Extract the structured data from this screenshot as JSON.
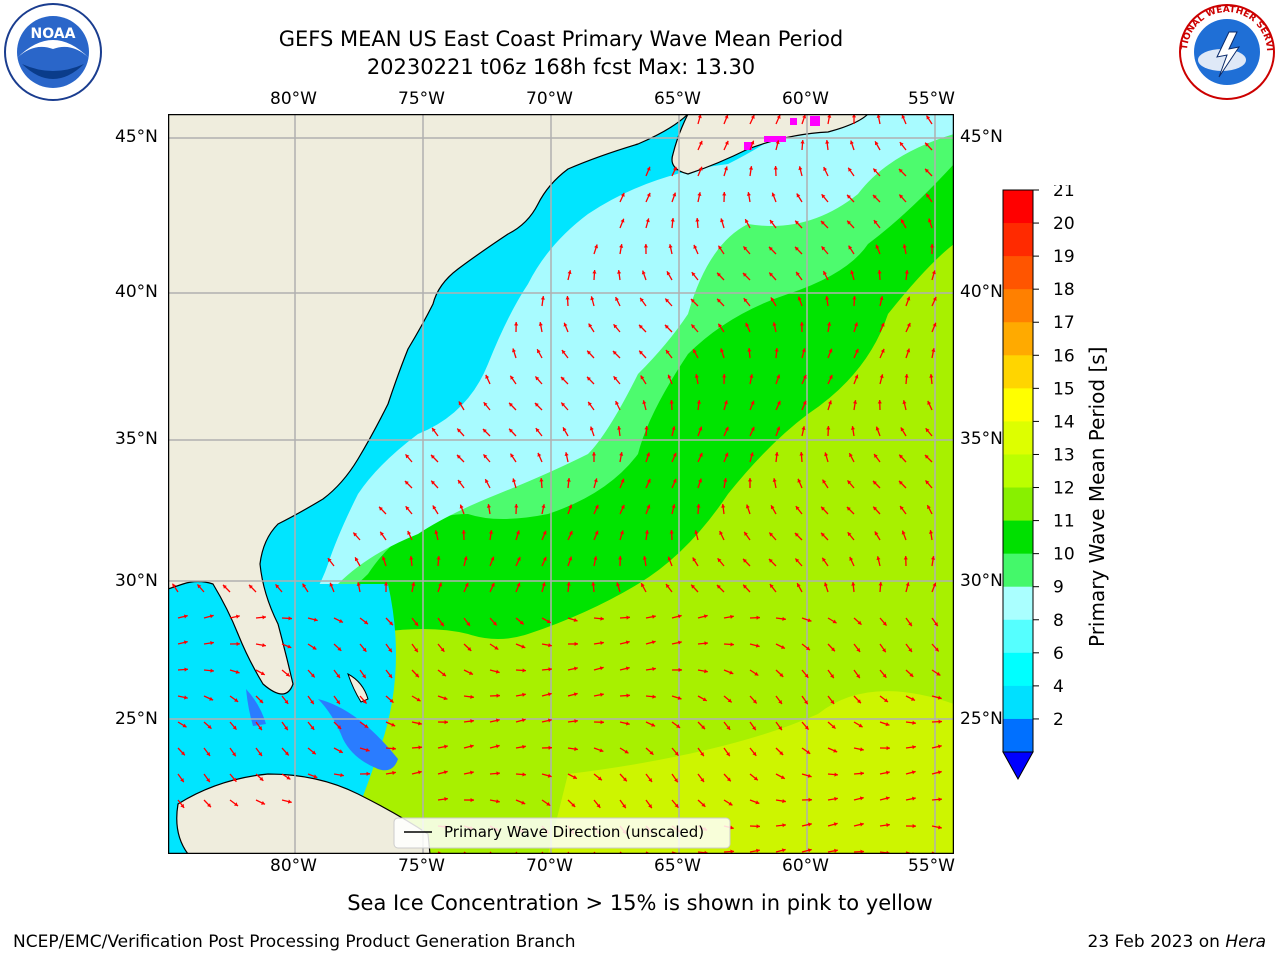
{
  "title": {
    "line1": "GEFS MEAN US East Coast Primary Wave Mean Period",
    "line2": "20230221 t06z 168h fcst   Max: 13.30"
  },
  "logos": {
    "left": "NOAA",
    "right": "NATIONAL WEATHER SERVICE"
  },
  "map": {
    "lon_labels": [
      "80°W",
      "75°W",
      "70°W",
      "65°W",
      "60°W",
      "55°W"
    ],
    "lat_labels": [
      "45°N",
      "40°N",
      "35°N",
      "30°N",
      "25°N"
    ],
    "legend_text": "Primary Wave Direction (unscaled)",
    "colors": {
      "land": "#efeddd",
      "ocean_low": "#00e5ff",
      "ocean_mid": "#a8fbff",
      "period_9": "#4dfb6e",
      "period_10": "#00e400",
      "period_12": "#a8f000",
      "period_13": "#cdf500",
      "arrow": "#ff0000",
      "grid": "#b0b0b0",
      "ice": "#ff00ff"
    }
  },
  "colorbar": {
    "label": "Primary Wave Mean Period [s]",
    "ticks": [
      "21",
      "20",
      "19",
      "18",
      "17",
      "16",
      "15",
      "14",
      "13",
      "12",
      "11",
      "10",
      "9",
      "8",
      "6",
      "4",
      "2"
    ],
    "colors": [
      "#ff0000",
      "#ff2a00",
      "#ff5500",
      "#ff8000",
      "#ffaa00",
      "#ffd500",
      "#ffff00",
      "#ddff00",
      "#bbff00",
      "#88f000",
      "#00e000",
      "#44f86a",
      "#aaffff",
      "#55ffff",
      "#00ffff",
      "#00e0ff",
      "#0070ff"
    ],
    "extend_color": "#0000ff"
  },
  "caption": "Sea Ice Concentration > 15% is shown in pink to yellow",
  "footer": {
    "left": "NCEP/EMC/Verification Post Processing Product Generation Branch",
    "right_prefix": "23 Feb 2023 on ",
    "right_host": "Hera"
  }
}
